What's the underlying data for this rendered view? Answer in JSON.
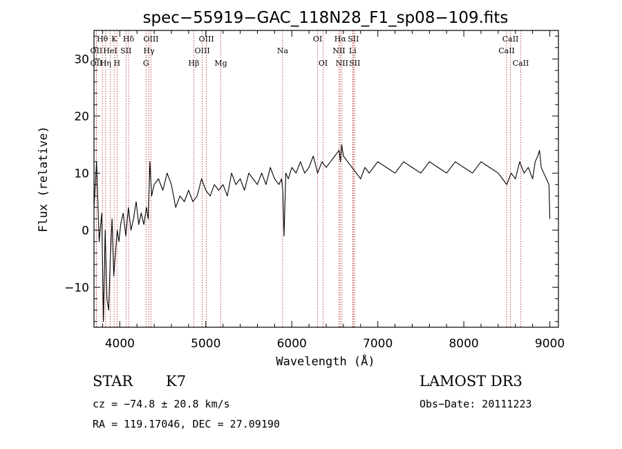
{
  "chart_data": {
    "type": "line",
    "title": "spec−55919−GAC_118N28_F1_sp08−109.fits",
    "xlabel": "Wavelength (Å)",
    "ylabel": "Flux (relative)",
    "xlim": [
      3700,
      9100
    ],
    "ylim": [
      -17,
      35
    ],
    "xticks": [
      4000,
      5000,
      6000,
      7000,
      8000,
      9000
    ],
    "xtick_labels": [
      "4000",
      "5000",
      "6000",
      "7000",
      "8000",
      "9000"
    ],
    "yticks": [
      -10,
      0,
      10,
      20,
      30
    ],
    "ytick_labels": [
      "−10",
      "0",
      "10",
      "20",
      "30"
    ],
    "spectrum": {
      "x": [
        3700,
        3730,
        3760,
        3790,
        3810,
        3830,
        3850,
        3870,
        3890,
        3910,
        3930,
        3950,
        3970,
        3990,
        4010,
        4040,
        4070,
        4100,
        4130,
        4160,
        4190,
        4220,
        4250,
        4280,
        4310,
        4330,
        4350,
        4370,
        4400,
        4450,
        4500,
        4550,
        4600,
        4650,
        4700,
        4750,
        4800,
        4850,
        4900,
        4950,
        5000,
        5050,
        5100,
        5150,
        5200,
        5250,
        5300,
        5350,
        5400,
        5450,
        5500,
        5550,
        5600,
        5650,
        5700,
        5750,
        5800,
        5850,
        5880,
        5895,
        5910,
        5930,
        5960,
        6000,
        6050,
        6100,
        6150,
        6200,
        6250,
        6300,
        6350,
        6400,
        6450,
        6500,
        6550,
        6565,
        6580,
        6600,
        6650,
        6700,
        6750,
        6800,
        6850,
        6900,
        6950,
        7000,
        7100,
        7200,
        7300,
        7400,
        7500,
        7600,
        7700,
        7800,
        7900,
        8000,
        8100,
        8200,
        8300,
        8400,
        8450,
        8500,
        8550,
        8600,
        8650,
        8700,
        8750,
        8800,
        8830,
        8860,
        8880,
        8900,
        8930,
        8960,
        8990,
        9000
      ],
      "y": [
        4,
        12,
        -2,
        3,
        -16,
        0,
        -12,
        -14,
        -5,
        2,
        -8,
        -4,
        0,
        -2,
        1,
        3,
        -1,
        4,
        0,
        2,
        5,
        1,
        3,
        1,
        4,
        2,
        12,
        6,
        8,
        9,
        7,
        10,
        8,
        4,
        6,
        5,
        7,
        5,
        6,
        9,
        7,
        6,
        8,
        7,
        8,
        6,
        10,
        8,
        9,
        7,
        10,
        9,
        8,
        10,
        8,
        11,
        9,
        8,
        9,
        7,
        -1,
        10,
        9,
        11,
        10,
        12,
        10,
        11,
        13,
        10,
        12,
        11,
        12,
        13,
        14,
        12,
        15,
        13,
        12,
        11,
        10,
        9,
        11,
        10,
        11,
        12,
        11,
        10,
        12,
        11,
        10,
        12,
        11,
        10,
        12,
        11,
        10,
        12,
        11,
        10,
        9,
        8,
        10,
        9,
        12,
        10,
        11,
        9,
        12,
        13,
        14,
        11,
        10,
        9,
        8,
        2
      ],
      "color": "#000000"
    },
    "emission_lines": [
      {
        "name": "Hθ",
        "x": 3798,
        "row": 1
      },
      {
        "name": "K",
        "x": 3934,
        "row": 1
      },
      {
        "name": "Hδ",
        "x": 4102,
        "row": 1
      },
      {
        "name": "OIII",
        "x": 4363,
        "row": 1
      },
      {
        "name": "OIII",
        "x": 5007,
        "row": 1
      },
      {
        "name": "OI",
        "x": 6300,
        "row": 1
      },
      {
        "name": "Hα",
        "x": 6563,
        "row": 1
      },
      {
        "name": "SII",
        "x": 6716,
        "row": 1
      },
      {
        "name": "CaII",
        "x": 8542,
        "row": 1
      },
      {
        "name": "OII",
        "x": 3727,
        "row": 2
      },
      {
        "name": "HeI",
        "x": 3889,
        "row": 2
      },
      {
        "name": "SII",
        "x": 4072,
        "row": 2
      },
      {
        "name": "Hγ",
        "x": 4340,
        "row": 2
      },
      {
        "name": "OIII",
        "x": 4959,
        "row": 2
      },
      {
        "name": "Na",
        "x": 5893,
        "row": 2
      },
      {
        "name": "NII",
        "x": 6548,
        "row": 2
      },
      {
        "name": "Li",
        "x": 6708,
        "row": 2
      },
      {
        "name": "CaII",
        "x": 8498,
        "row": 2
      },
      {
        "name": "OII",
        "x": 3727,
        "row": 3
      },
      {
        "name": "Hη",
        "x": 3835,
        "row": 3
      },
      {
        "name": "H",
        "x": 3968,
        "row": 3
      },
      {
        "name": "G",
        "x": 4305,
        "row": 3
      },
      {
        "name": "Hβ",
        "x": 4861,
        "row": 3
      },
      {
        "name": "Mg",
        "x": 5175,
        "row": 3
      },
      {
        "name": "OI",
        "x": 6364,
        "row": 3
      },
      {
        "name": "NII",
        "x": 6583,
        "row": 3
      },
      {
        "name": "SII",
        "x": 6731,
        "row": 3
      },
      {
        "name": "CaII",
        "x": 8662,
        "row": 3
      }
    ],
    "line_color": "#b22222"
  },
  "info": {
    "object_class": "STAR",
    "subclass": "K7",
    "survey": "LAMOST DR3",
    "cz": "cz = −74.8 ± 20.8 km/s",
    "obs_date": "Obs−Date: 20111223",
    "coords": "RA = 119.17046, DEC =  27.09190"
  }
}
